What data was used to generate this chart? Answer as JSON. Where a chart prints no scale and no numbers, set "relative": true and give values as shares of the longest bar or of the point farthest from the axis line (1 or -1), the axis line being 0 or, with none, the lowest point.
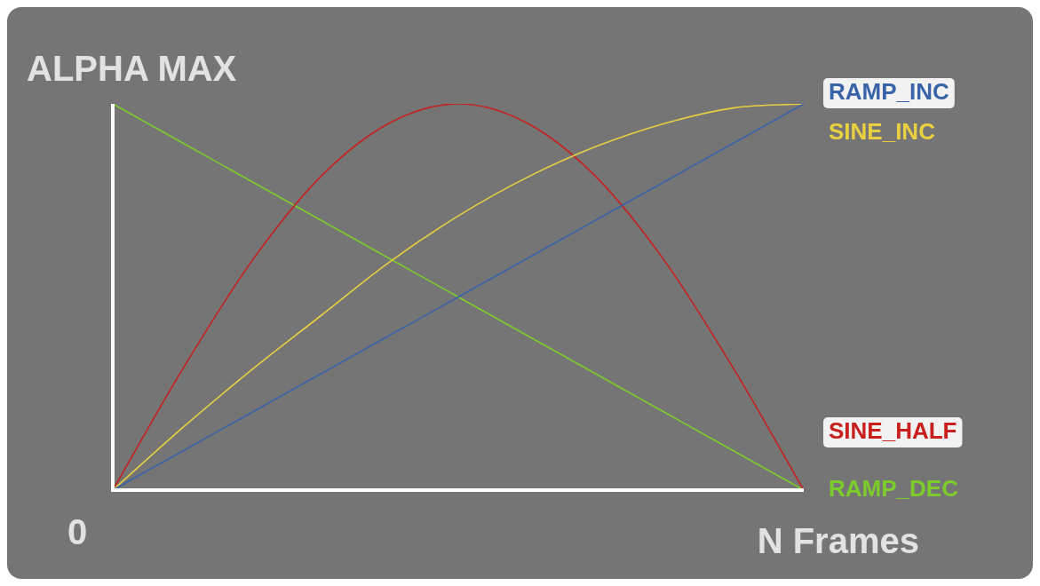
{
  "chart_data": {
    "type": "line",
    "relative": true,
    "ylabel": "ALPHA MAX",
    "xlabel": "N Frames",
    "annotations": [
      "0"
    ],
    "legend": "right",
    "marker": "none",
    "categories": [
      null,
      null,
      null,
      null,
      null,
      null,
      null,
      null,
      null,
      null,
      null
    ],
    "series": [
      {
        "name": "RAMP_INC",
        "color": "#3a64a8",
        "values": [
          0,
          0.1,
          0.2,
          0.3,
          0.4,
          0.5,
          0.6,
          0.7,
          0.8,
          0.9,
          1
        ]
      },
      {
        "name": "SINE_INC",
        "color": "#e8d040",
        "values": [
          0,
          0.16,
          0.31,
          0.45,
          0.59,
          0.71,
          0.81,
          0.89,
          0.95,
          0.99,
          1
        ]
      },
      {
        "name": "SINE_HALF",
        "color": "#c8201c",
        "values": [
          0,
          0.31,
          0.59,
          0.81,
          0.95,
          1,
          0.95,
          0.81,
          0.59,
          0.31,
          0
        ]
      },
      {
        "name": "RAMP_DEC",
        "color": "#7ccc2c",
        "values": [
          1,
          0.9,
          0.8,
          0.7,
          0.6,
          0.5,
          0.4,
          0.3,
          0.2,
          0.1,
          0
        ]
      }
    ]
  }
}
